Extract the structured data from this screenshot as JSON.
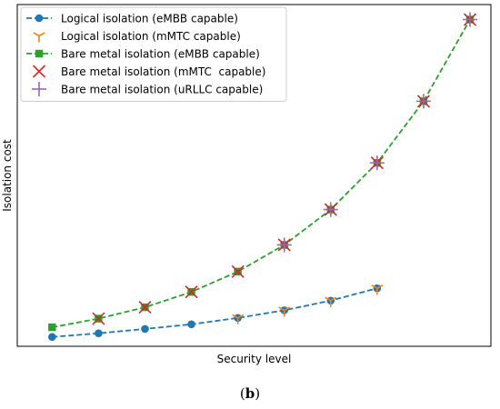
{
  "caption": {
    "open": "(",
    "letter": "b",
    "close": ")"
  },
  "chart_data": {
    "type": "line",
    "title": "",
    "xlabel": "Security level",
    "ylabel": "Isolation cost",
    "xlim": [
      0.25,
      10.45
    ],
    "ylim": [
      0.3,
      10.55
    ],
    "x_ticks_visible": false,
    "y_ticks_visible": false,
    "grid": false,
    "legend_position": "top-left",
    "series": [
      {
        "name": "Logical isolation (eMBB capable)",
        "color": "#1f77b4",
        "marker": "circle",
        "linestyle": "dashed",
        "x": [
          1,
          2,
          3,
          4,
          5,
          6,
          7,
          8
        ],
        "y": [
          0.58,
          0.69,
          0.82,
          0.96,
          1.15,
          1.38,
          1.67,
          2.04
        ]
      },
      {
        "name": "Logical isolation (mMTC capable)",
        "color": "#ff7f0e",
        "marker": "tri_down",
        "linestyle": "none",
        "x": [
          5,
          6,
          7,
          8
        ],
        "y": [
          1.15,
          1.38,
          1.67,
          2.04
        ]
      },
      {
        "name": "Bare metal isolation (eMBB capable)",
        "color": "#2ca02c",
        "marker": "square",
        "linestyle": "dashed",
        "x": [
          1,
          2,
          3,
          4,
          5,
          6,
          7,
          8,
          9,
          10
        ],
        "y": [
          0.87,
          1.13,
          1.47,
          1.93,
          2.54,
          3.34,
          4.4,
          5.8,
          7.65,
          10.1
        ]
      },
      {
        "name": "Bare metal isolation (mMTC  capable)",
        "color": "#d62728",
        "marker": "x",
        "linestyle": "none",
        "x": [
          2,
          3,
          4,
          5,
          6,
          7,
          8,
          9,
          10
        ],
        "y": [
          1.13,
          1.47,
          1.93,
          2.54,
          3.34,
          4.4,
          5.8,
          7.65,
          10.1
        ]
      },
      {
        "name": "Bare metal isolation (uRLLC capable)",
        "color": "#9467bd",
        "marker": "plus",
        "linestyle": "none",
        "x": [
          6,
          7,
          8,
          9,
          10
        ],
        "y": [
          3.34,
          4.4,
          5.8,
          7.65,
          10.1
        ]
      }
    ]
  }
}
